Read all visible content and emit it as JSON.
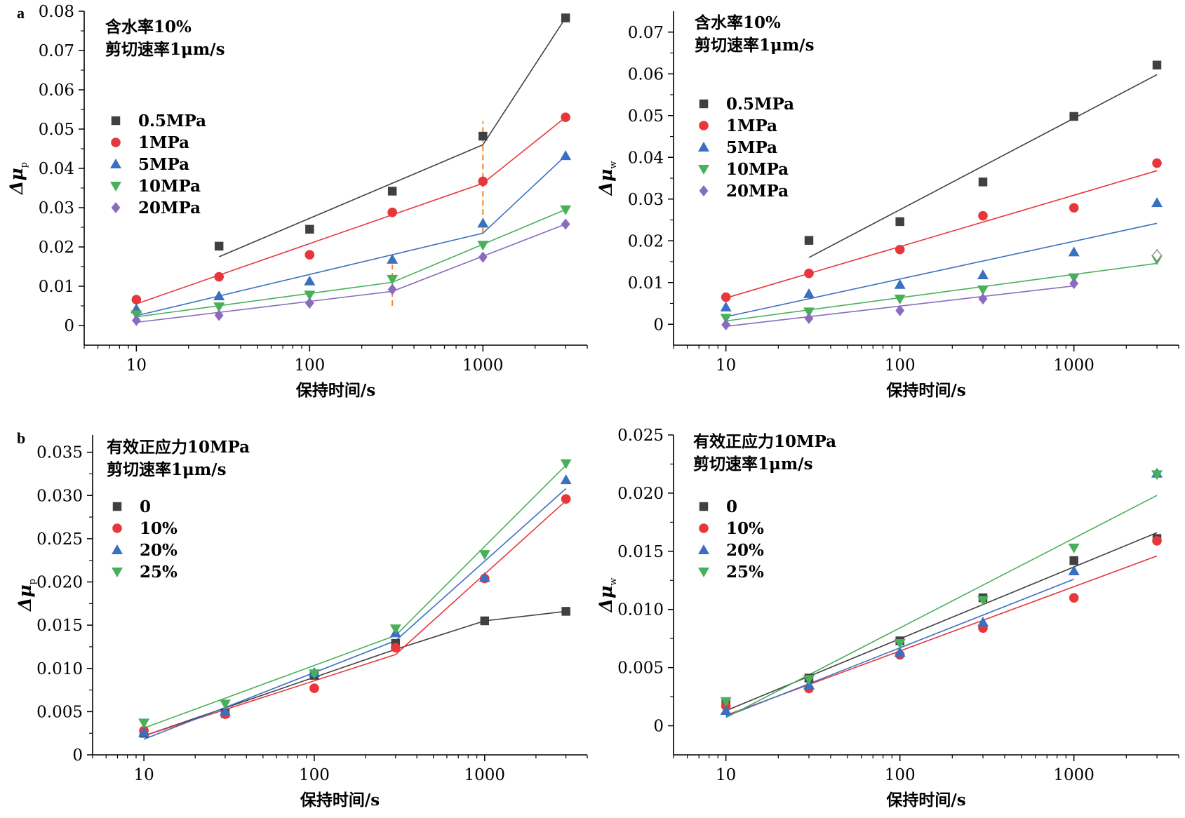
{
  "panel_labels": [
    "a",
    "b"
  ],
  "chart_data": [
    {
      "type": "scatter",
      "panel": "a",
      "annotation": [
        "含水率10%",
        "剪切速率1μm/s"
      ],
      "xlabel": "保持时间/s",
      "ylabel": "Δμ",
      "ylabel_sub": "p",
      "xscale": "log",
      "xlim": [
        5,
        4000
      ],
      "ylim": [
        -0.005,
        0.08
      ],
      "xticks": [
        10,
        100,
        1000
      ],
      "xtick_labels": [
        "10",
        "100",
        "1000"
      ],
      "yticks": [
        0,
        0.01,
        0.02,
        0.03,
        0.04,
        0.05,
        0.06,
        0.07,
        0.08
      ],
      "ytick_labels": [
        "0",
        "0.01",
        "0.02",
        "0.03",
        "0.04",
        "0.05",
        "0.06",
        "0.07",
        "0.08"
      ],
      "legend_position": "left",
      "x": [
        10,
        30,
        100,
        300,
        1000,
        3000
      ],
      "series": [
        {
          "name": "0.5MPa",
          "marker": "square",
          "color": "#404040",
          "values": [
            null,
            0.0202,
            0.0245,
            0.0342,
            0.0482,
            0.0783
          ],
          "fit": [
            [
              30,
              0.0175
            ],
            [
              1000,
              0.046
            ],
            [
              3000,
              0.0783
            ]
          ]
        },
        {
          "name": "1MPa",
          "marker": "circle",
          "color": "#e8373c",
          "values": [
            0.0066,
            0.0124,
            0.018,
            0.0288,
            0.0367,
            0.053
          ],
          "fit": [
            [
              10,
              0.0055
            ],
            [
              1000,
              0.0362
            ],
            [
              3000,
              0.053
            ]
          ]
        },
        {
          "name": "5MPa",
          "marker": "triangle-up",
          "color": "#3a70c0",
          "values": [
            0.0042,
            0.0075,
            0.0113,
            0.0168,
            0.026,
            0.0432
          ],
          "fit": [
            [
              10,
              0.0025
            ],
            [
              1000,
              0.0235
            ],
            [
              3000,
              0.0432
            ]
          ]
        },
        {
          "name": "10MPa",
          "marker": "triangle-down",
          "color": "#49b05a",
          "values": [
            0.0028,
            0.0048,
            0.0078,
            0.0118,
            0.0205,
            0.0295
          ],
          "fit": [
            [
              10,
              0.0022
            ],
            [
              300,
              0.011
            ],
            [
              3000,
              0.0295
            ]
          ]
        },
        {
          "name": "20MPa",
          "marker": "diamond",
          "color": "#8a6bbf",
          "values": [
            0.0013,
            0.0026,
            0.0057,
            0.0092,
            0.0174,
            0.0258
          ],
          "fit": [
            [
              10,
              0.0008
            ],
            [
              300,
              0.0087
            ],
            [
              3000,
              0.0258
            ]
          ]
        }
      ],
      "reference_lines": [
        {
          "x": 300,
          "y_range": [
            0.005,
            0.0155
          ],
          "color": "#f08a2a",
          "style": "dashed"
        },
        {
          "x": 1000,
          "y_range": [
            0.0235,
            0.052
          ],
          "color": "#f08a2a",
          "style": "dashed"
        }
      ]
    },
    {
      "type": "scatter",
      "panel": "a-right",
      "annotation": [
        "含水率10%",
        "剪切速率1μm/s"
      ],
      "xlabel": "保持时间/s",
      "ylabel": "Δμ",
      "ylabel_sub": "w",
      "xscale": "log",
      "xlim": [
        5,
        4000
      ],
      "ylim": [
        -0.005,
        0.075
      ],
      "xticks": [
        10,
        100,
        1000
      ],
      "xtick_labels": [
        "10",
        "100",
        "1000"
      ],
      "yticks": [
        0,
        0.01,
        0.02,
        0.03,
        0.04,
        0.05,
        0.06,
        0.07
      ],
      "ytick_labels": [
        "0",
        "0.01",
        "0.02",
        "0.03",
        "0.04",
        "0.05",
        "0.06",
        "0.07"
      ],
      "legend_position": "left",
      "x": [
        10,
        30,
        100,
        300,
        1000,
        3000
      ],
      "series": [
        {
          "name": "0.5MPa",
          "marker": "square",
          "color": "#404040",
          "values": [
            null,
            0.0201,
            0.0246,
            0.0341,
            0.0498,
            0.0621
          ],
          "fit": [
            [
              30,
              0.016
            ],
            [
              3000,
              0.0598
            ]
          ]
        },
        {
          "name": "1MPa",
          "marker": "circle",
          "color": "#e8373c",
          "values": [
            0.0065,
            0.0122,
            0.0179,
            0.026,
            0.0279,
            0.0386
          ],
          "fit": [
            [
              10,
              0.0063
            ],
            [
              3000,
              0.0368
            ]
          ]
        },
        {
          "name": "5MPa",
          "marker": "triangle-up",
          "color": "#3a70c0",
          "values": [
            0.0041,
            0.0073,
            0.0095,
            0.0118,
            0.0173,
            0.0291
          ],
          "fit": [
            [
              10,
              0.0018
            ],
            [
              3000,
              0.0242
            ]
          ]
        },
        {
          "name": "10MPa",
          "marker": "triangle-down",
          "color": "#49b05a",
          "values": [
            0.0015,
            0.003,
            0.0061,
            0.0083,
            0.0112,
            0.0155
          ],
          "fit": [
            [
              10,
              0.0008
            ],
            [
              3000,
              0.0146
            ]
          ]
        },
        {
          "name": "20MPa",
          "marker": "diamond",
          "color": "#8a6bbf",
          "values": [
            -0.0001,
            0.0014,
            0.0033,
            0.0061,
            0.0098,
            0.0165
          ],
          "hollow_last": true,
          "fit": [
            [
              10,
              -0.0005
            ],
            [
              1000,
              0.0092
            ]
          ]
        }
      ]
    },
    {
      "type": "scatter",
      "panel": "b",
      "annotation": [
        "有效正应力10MPa",
        "剪切速率1μm/s"
      ],
      "xlabel": "保持时间/s",
      "ylabel": "Δμ",
      "ylabel_sub": "p",
      "xscale": "log",
      "xlim": [
        5,
        4000
      ],
      "ylim": [
        0,
        0.037
      ],
      "xticks": [
        10,
        100,
        1000
      ],
      "xtick_labels": [
        "10",
        "100",
        "1000"
      ],
      "yticks": [
        0,
        0.005,
        0.01,
        0.015,
        0.02,
        0.025,
        0.03,
        0.035
      ],
      "ytick_labels": [
        "0",
        "0.005",
        "0.010",
        "0.015",
        "0.020",
        "0.025",
        "0.030",
        "0.035"
      ],
      "legend_position": "left",
      "x": [
        10,
        30,
        100,
        300,
        1000,
        3000
      ],
      "series": [
        {
          "name": "0",
          "marker": "square",
          "color": "#404040",
          "values": [
            0.0025,
            0.0048,
            0.0092,
            0.0129,
            0.0155,
            0.0166
          ],
          "fit": [
            [
              10,
              0.0022
            ],
            [
              300,
              0.0122
            ],
            [
              1000,
              0.0155
            ],
            [
              3000,
              0.0166
            ]
          ]
        },
        {
          "name": "10%",
          "marker": "circle",
          "color": "#e8373c",
          "values": [
            0.0028,
            0.0047,
            0.0077,
            0.0124,
            0.0204,
            0.0296
          ],
          "fit": [
            [
              10,
              0.0022
            ],
            [
              300,
              0.0116
            ],
            [
              3000,
              0.0294
            ]
          ]
        },
        {
          "name": "20%",
          "marker": "triangle-up",
          "color": "#3a70c0",
          "values": [
            0.0026,
            0.005,
            0.0095,
            0.0141,
            0.0205,
            0.0318
          ],
          "fit": [
            [
              10,
              0.0018
            ],
            [
              300,
              0.0132
            ],
            [
              3000,
              0.0308
            ]
          ]
        },
        {
          "name": "25%",
          "marker": "triangle-down",
          "color": "#49b05a",
          "values": [
            0.0037,
            0.0059,
            0.0094,
            0.0146,
            0.0232,
            0.0337
          ],
          "fit": [
            [
              10,
              0.0031
            ],
            [
              300,
              0.0138
            ],
            [
              3000,
              0.0335
            ]
          ]
        }
      ]
    },
    {
      "type": "scatter",
      "panel": "b-right",
      "annotation": [
        "有效正应力10MPa",
        "剪切速率1μm/s"
      ],
      "xlabel": "保持时间/s",
      "ylabel": "Δμ",
      "ylabel_sub": "w",
      "xscale": "log",
      "xlim": [
        5,
        4000
      ],
      "ylim": [
        -0.0025,
        0.025
      ],
      "xticks": [
        10,
        100,
        1000
      ],
      "xtick_labels": [
        "10",
        "100",
        "1000"
      ],
      "yticks": [
        0,
        0.005,
        0.01,
        0.015,
        0.02,
        0.025
      ],
      "ytick_labels": [
        "0",
        "0.005",
        "0.010",
        "0.015",
        "0.020",
        "0.025"
      ],
      "legend_position": "left",
      "x": [
        10,
        30,
        100,
        300,
        1000,
        3000
      ],
      "series": [
        {
          "name": "0",
          "marker": "square",
          "color": "#404040",
          "values": [
            0.002,
            0.0041,
            0.0073,
            0.011,
            0.0142,
            0.0161
          ],
          "fit": [
            [
              10,
              0.0013
            ],
            [
              3000,
              0.0166
            ]
          ]
        },
        {
          "name": "10%",
          "marker": "circle",
          "color": "#e8373c",
          "values": [
            0.0017,
            0.0032,
            0.0061,
            0.0084,
            0.011,
            0.0159
          ],
          "fit": [
            [
              10,
              0.0009
            ],
            [
              3000,
              0.0146
            ]
          ]
        },
        {
          "name": "20%",
          "marker": "triangle-up",
          "color": "#3a70c0",
          "values": [
            0.0013,
            0.0035,
            0.0063,
            0.0089,
            0.0133,
            0.0217
          ],
          "fit": [
            [
              10,
              0.0008
            ],
            [
              1000,
              0.0126
            ]
          ]
        },
        {
          "name": "25%",
          "marker": "triangle-down",
          "color": "#49b05a",
          "values": [
            0.0021,
            0.004,
            0.0071,
            0.0108,
            0.0153,
            0.0216
          ],
          "fit": [
            [
              10,
              0.0007
            ],
            [
              3000,
              0.0198
            ]
          ]
        }
      ]
    }
  ]
}
